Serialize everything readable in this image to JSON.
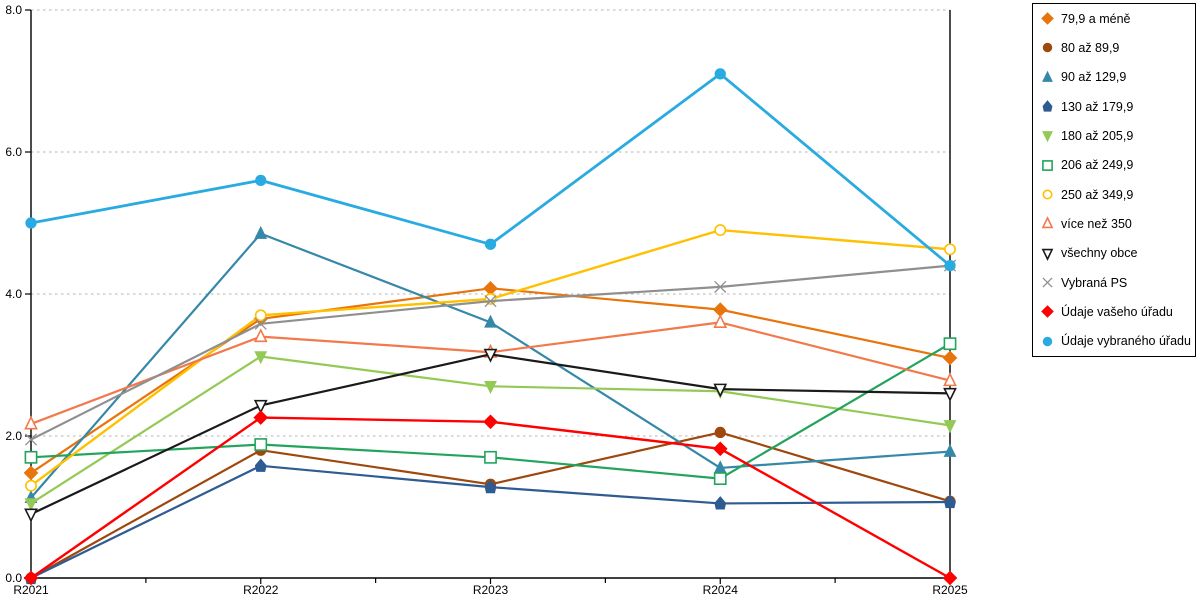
{
  "chart_data": {
    "type": "line",
    "title": "",
    "xlabel": "",
    "ylabel": "",
    "categories": [
      "R2021",
      "R2022",
      "R2023",
      "R2024",
      "R2025"
    ],
    "ylim": [
      0,
      8
    ],
    "ytick_labels": [
      "0.0",
      "2.0",
      "4.0",
      "6.0",
      "8.0"
    ],
    "ytick_values": [
      0,
      2,
      4,
      6,
      8
    ],
    "grid": "horizontal-dotted",
    "grid_color": "#b3b3b3",
    "axis_color": "#000000",
    "legend_position": "right",
    "series": [
      {
        "name": "79,9 a méně",
        "color": "#e8740c",
        "marker": "diamond",
        "filled": true,
        "width": 2.2,
        "values": [
          1.48,
          3.65,
          4.08,
          3.78,
          3.1
        ]
      },
      {
        "name": "80 až 89,9",
        "color": "#9e480e",
        "marker": "circle",
        "filled": true,
        "width": 2.2,
        "values": [
          0.0,
          1.8,
          1.32,
          2.05,
          1.08
        ]
      },
      {
        "name": "90 až 129,9",
        "color": "#3588a8",
        "marker": "triangle-up",
        "filled": true,
        "width": 2.2,
        "values": [
          1.13,
          4.85,
          3.6,
          1.55,
          1.78
        ]
      },
      {
        "name": "130 až 179,9",
        "color": "#2f5b93",
        "marker": "pentagon",
        "filled": true,
        "width": 2.2,
        "values": [
          0.0,
          1.58,
          1.28,
          1.05,
          1.07
        ]
      },
      {
        "name": "180 až 205,9",
        "color": "#93c954",
        "marker": "triangle-down",
        "filled": true,
        "width": 2.2,
        "values": [
          1.05,
          3.12,
          2.7,
          2.63,
          2.15
        ]
      },
      {
        "name": "206 až 249,9",
        "color": "#22a45c",
        "marker": "square",
        "filled": false,
        "width": 2.2,
        "values": [
          1.7,
          1.88,
          1.7,
          1.4,
          3.3
        ]
      },
      {
        "name": "250 až 349,9",
        "color": "#ffc000",
        "marker": "circle",
        "filled": false,
        "width": 2.4,
        "values": [
          1.3,
          3.7,
          3.93,
          4.9,
          4.63
        ]
      },
      {
        "name": "více než 350",
        "color": "#f2794b",
        "marker": "triangle-up",
        "filled": false,
        "width": 2.2,
        "values": [
          2.17,
          3.4,
          3.18,
          3.6,
          2.78
        ]
      },
      {
        "name": "všechny obce",
        "color": "#1a1a1a",
        "marker": "triangle-down",
        "filled": false,
        "width": 2.2,
        "values": [
          0.9,
          2.43,
          3.15,
          2.66,
          2.6
        ]
      },
      {
        "name": "Vybraná PS",
        "color": "#8f8f8f",
        "marker": "x",
        "filled": false,
        "width": 2.2,
        "values": [
          1.95,
          3.58,
          3.9,
          4.1,
          4.4
        ]
      },
      {
        "name": "Údaje vašeho úřadu",
        "color": "#ff0000",
        "marker": "diamond",
        "filled": true,
        "width": 2.4,
        "values": [
          0.0,
          2.26,
          2.2,
          1.82,
          0.0
        ]
      },
      {
        "name": "Údaje vybraného úřadu",
        "color": "#29abe2",
        "marker": "circle",
        "filled": true,
        "width": 2.8,
        "values": [
          5.0,
          5.6,
          4.7,
          7.1,
          4.4
        ]
      }
    ]
  }
}
